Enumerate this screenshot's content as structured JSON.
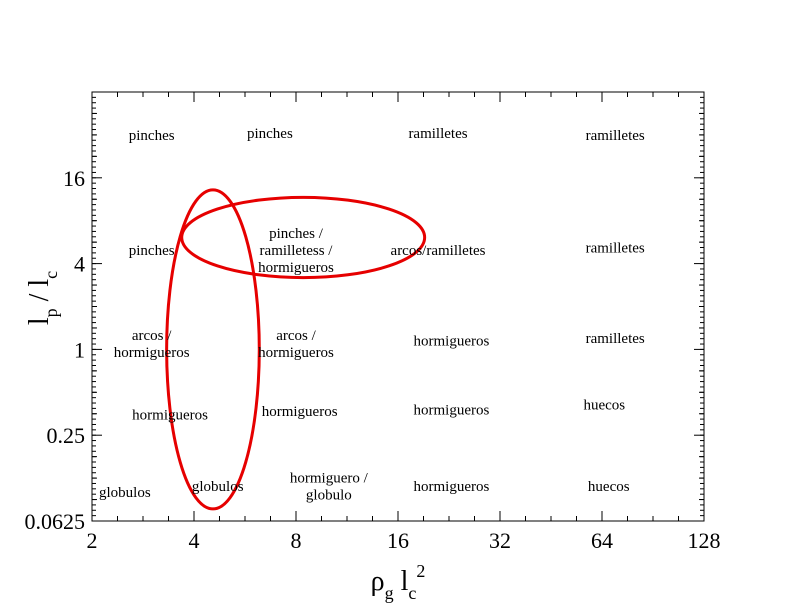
{
  "chart_data": {
    "type": "scatter",
    "title": "",
    "x_scale": "log2",
    "y_scale": "log2",
    "xlim": [
      2,
      128
    ],
    "ylim": [
      0.0625,
      64
    ],
    "x_ticks": [
      {
        "value": 2,
        "label": "2"
      },
      {
        "value": 4,
        "label": "4"
      },
      {
        "value": 8,
        "label": "8"
      },
      {
        "value": 16,
        "label": "16"
      },
      {
        "value": 32,
        "label": "32"
      },
      {
        "value": 64,
        "label": "64"
      },
      {
        "value": 128,
        "label": "128"
      }
    ],
    "y_ticks": [
      {
        "value": 0.0625,
        "label": "0.0625"
      },
      {
        "value": 0.25,
        "label": "0.25"
      },
      {
        "value": 1,
        "label": "1"
      },
      {
        "value": 4,
        "label": "4"
      },
      {
        "value": 16,
        "label": "16"
      }
    ],
    "xlabel": {
      "base": "ρ",
      "sub1": "g",
      "mid": " l",
      "sub2": "c",
      "sup": "2"
    },
    "ylabel": {
      "base": "l",
      "sub1": "p",
      "mid": " / l",
      "sub2": "c"
    },
    "annotations": [
      {
        "x": 3.0,
        "y": 32,
        "lines": [
          "pinches"
        ]
      },
      {
        "x": 6.7,
        "y": 33,
        "lines": [
          "pinches"
        ]
      },
      {
        "x": 21,
        "y": 33,
        "lines": [
          "ramilletes"
        ]
      },
      {
        "x": 70,
        "y": 32,
        "lines": [
          "ramilletes"
        ]
      },
      {
        "x": 3.0,
        "y": 5.0,
        "lines": [
          "pinches"
        ]
      },
      {
        "x": 8.0,
        "y": 5.0,
        "lines": [
          "pinches /",
          "ramilletess /",
          "hormigueros"
        ]
      },
      {
        "x": 21,
        "y": 5.0,
        "lines": [
          "arcos/ramilletes"
        ]
      },
      {
        "x": 70,
        "y": 5.2,
        "lines": [
          "ramilletes"
        ]
      },
      {
        "x": 3.0,
        "y": 1.1,
        "lines": [
          "arcos /",
          "hormigueros"
        ]
      },
      {
        "x": 8.0,
        "y": 1.1,
        "lines": [
          "arcos /",
          "hormigueros"
        ]
      },
      {
        "x": 23,
        "y": 1.15,
        "lines": [
          "hormigueros"
        ]
      },
      {
        "x": 70,
        "y": 1.2,
        "lines": [
          "ramilletes"
        ]
      },
      {
        "x": 3.4,
        "y": 0.35,
        "lines": [
          "hormigueros"
        ]
      },
      {
        "x": 8.2,
        "y": 0.37,
        "lines": [
          "hormigueros"
        ]
      },
      {
        "x": 23,
        "y": 0.38,
        "lines": [
          "hormigueros"
        ]
      },
      {
        "x": 65,
        "y": 0.41,
        "lines": [
          "huecos"
        ]
      },
      {
        "x": 2.5,
        "y": 0.1,
        "lines": [
          "globulos"
        ]
      },
      {
        "x": 4.7,
        "y": 0.11,
        "lines": [
          "globulos"
        ]
      },
      {
        "x": 10,
        "y": 0.11,
        "lines": [
          "hormiguero /",
          "globulo"
        ]
      },
      {
        "x": 23,
        "y": 0.11,
        "lines": [
          "hormigueros"
        ]
      },
      {
        "x": 67,
        "y": 0.11,
        "lines": [
          "huecos"
        ]
      }
    ],
    "highlight_color": "#e60000",
    "highlights": [
      {
        "shape": "ellipse",
        "center_x": 4.55,
        "center_y": 1.0,
        "x_min": 3.25,
        "x_max": 6.1,
        "y_min": 0.075,
        "y_max": 13
      },
      {
        "shape": "ellipse",
        "center_x": 8.4,
        "center_y": 6.1,
        "x_min": 3.55,
        "x_max": 18.5,
        "y_min": 3.5,
        "y_max": 12.8
      }
    ],
    "grid": false,
    "legend": "none"
  }
}
